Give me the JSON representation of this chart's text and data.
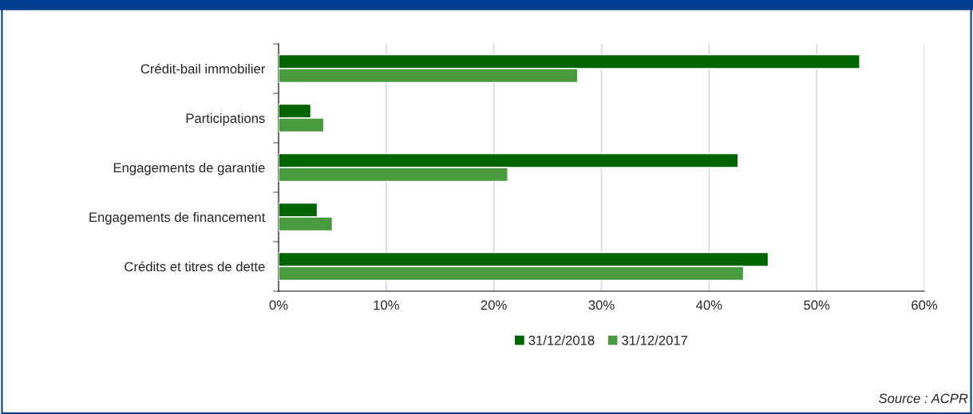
{
  "chart_data": {
    "type": "bar",
    "orientation": "horizontal",
    "categories": [
      "Crédit-bail immobilier",
      "Participations",
      "Engagements de garantie",
      "Engagements de financement",
      "Crédits et titres de dette"
    ],
    "series": [
      {
        "name": "31/12/2018",
        "color": "#006400",
        "values": [
          54.0,
          3.0,
          42.7,
          3.6,
          45.5
        ]
      },
      {
        "name": "31/12/2017",
        "color": "#4a9a3f",
        "values": [
          27.8,
          4.2,
          21.3,
          5.0,
          43.2
        ]
      }
    ],
    "xlim": [
      0,
      60
    ],
    "xticks": [
      {
        "value": 0,
        "label": "0%"
      },
      {
        "value": 10,
        "label": "10%"
      },
      {
        "value": 20,
        "label": "20%"
      },
      {
        "value": 30,
        "label": "30%"
      },
      {
        "value": 40,
        "label": "40%"
      },
      {
        "value": 50,
        "label": "50%"
      },
      {
        "value": 60,
        "label": "60%"
      }
    ],
    "grid": "x",
    "legend": "bottom",
    "annotations": [
      "Source : ACPR"
    ]
  }
}
